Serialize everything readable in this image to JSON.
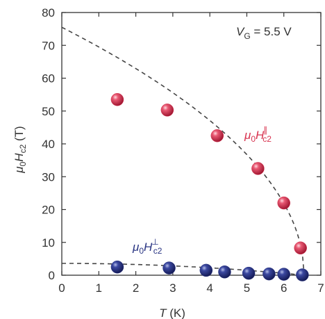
{
  "chart_data": {
    "type": "scatter",
    "xlabel": "T (K)",
    "ylabel": "μ0Hc2 (T)",
    "xlim": [
      0,
      7
    ],
    "ylim": [
      0,
      80
    ],
    "xticks": [
      0,
      1,
      2,
      3,
      4,
      5,
      6,
      7
    ],
    "yticks": [
      0,
      10,
      20,
      30,
      40,
      50,
      60,
      70,
      80
    ],
    "grid": false,
    "annotation": "V_G = 5.5 V",
    "series": [
      {
        "label": "μ0Hc2∥",
        "color": "#d8334f",
        "x": [
          1.5,
          2.85,
          4.2,
          5.3,
          6.0,
          6.45
        ],
        "y": [
          53.5,
          50.3,
          42.5,
          32.5,
          22.0,
          8.3
        ]
      },
      {
        "label": "μ0Hc2⊥",
        "color": "#2a3583",
        "x": [
          1.5,
          2.9,
          3.9,
          4.4,
          5.05,
          5.6,
          6.0,
          6.5
        ],
        "y": [
          2.5,
          2.2,
          1.5,
          1.0,
          0.6,
          0.4,
          0.3,
          0.1
        ]
      }
    ],
    "fit_curves": [
      {
        "name": "parallel-fit",
        "Tc": 6.55,
        "H0": 75.5,
        "form": "H0*sqrt(1-T/Tc)",
        "style": "dashed"
      },
      {
        "name": "perpendicular-fit",
        "Tc": 6.55,
        "H0": 3.6,
        "form": "H0*(1-(T/Tc)^2)",
        "style": "dashed"
      }
    ]
  }
}
